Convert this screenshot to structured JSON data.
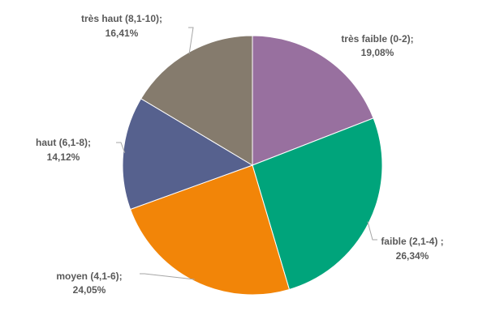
{
  "chart_data": {
    "type": "pie",
    "title": "",
    "legend": "none",
    "slices": [
      {
        "label": "très faible (0-2)",
        "value": 19.08,
        "display": "19,08%",
        "color": "#98709f"
      },
      {
        "label": "faible (2,1-4)",
        "value": 26.34,
        "display": "26,34%",
        "color": "#00a47b"
      },
      {
        "label": "moyen (4,1-6)",
        "value": 24.05,
        "display": "24,05%",
        "color": "#f28508"
      },
      {
        "label": "haut (6,1-8)",
        "value": 14.12,
        "display": "14,12%",
        "color": "#56618e"
      },
      {
        "label": "très haut (8,1-10)",
        "value": 16.41,
        "display": "16,41%",
        "color": "#857b6d"
      }
    ]
  }
}
